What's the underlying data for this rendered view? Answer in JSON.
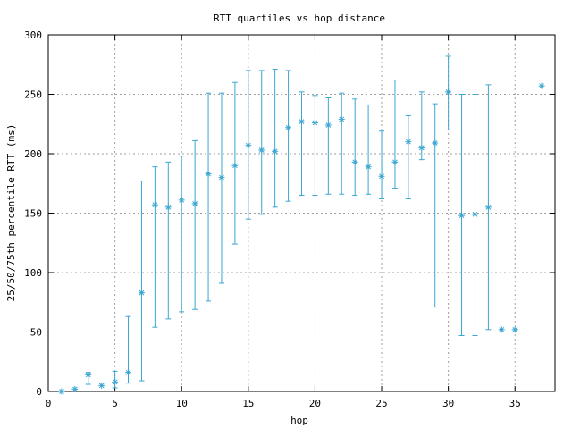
{
  "chart_data": {
    "type": "scatter",
    "title": "RTT quartiles vs hop distance",
    "xlabel": "hop",
    "ylabel": "25/50/75th percentile RTT (ms)",
    "xlim": [
      0,
      38
    ],
    "ylim": [
      0,
      300
    ],
    "x_ticks": [
      0,
      5,
      10,
      15,
      20,
      25,
      30,
      35
    ],
    "y_ticks": [
      0,
      50,
      100,
      150,
      200,
      250,
      300
    ],
    "grid": true,
    "legend": "none",
    "series_color": "#3aa6d2",
    "series": [
      {
        "points": [
          {
            "x": 1,
            "median": 0,
            "q1": null,
            "q3": null
          },
          {
            "x": 2,
            "median": 2,
            "q1": null,
            "q3": null
          },
          {
            "x": 3,
            "median": 14,
            "q1": 6,
            "q3": 16
          },
          {
            "x": 4,
            "median": 5,
            "q1": null,
            "q3": null
          },
          {
            "x": 5,
            "median": 8,
            "q1": 3,
            "q3": 17
          },
          {
            "x": 6,
            "median": 16,
            "q1": 7,
            "q3": 63
          },
          {
            "x": 7,
            "median": 83,
            "q1": 9,
            "q3": 177
          },
          {
            "x": 8,
            "median": 157,
            "q1": 54,
            "q3": 189
          },
          {
            "x": 9,
            "median": 155,
            "q1": 61,
            "q3": 193
          },
          {
            "x": 10,
            "median": 161,
            "q1": 67,
            "q3": 198
          },
          {
            "x": 11,
            "median": 158,
            "q1": 69,
            "q3": 211
          },
          {
            "x": 12,
            "median": 183,
            "q1": 76,
            "q3": 251
          },
          {
            "x": 13,
            "median": 180,
            "q1": 91,
            "q3": 251
          },
          {
            "x": 14,
            "median": 190,
            "q1": 124,
            "q3": 260
          },
          {
            "x": 15,
            "median": 207,
            "q1": 145,
            "q3": 270
          },
          {
            "x": 16,
            "median": 203,
            "q1": 149,
            "q3": 270
          },
          {
            "x": 17,
            "median": 202,
            "q1": 155,
            "q3": 271
          },
          {
            "x": 18,
            "median": 222,
            "q1": 160,
            "q3": 270
          },
          {
            "x": 19,
            "median": 227,
            "q1": 165,
            "q3": 252
          },
          {
            "x": 20,
            "median": 226,
            "q1": 165,
            "q3": 249
          },
          {
            "x": 21,
            "median": 224,
            "q1": 166,
            "q3": 247
          },
          {
            "x": 22,
            "median": 229,
            "q1": 166,
            "q3": 251
          },
          {
            "x": 23,
            "median": 193,
            "q1": 165,
            "q3": 246
          },
          {
            "x": 24,
            "median": 189,
            "q1": 166,
            "q3": 241
          },
          {
            "x": 25,
            "median": 181,
            "q1": 162,
            "q3": 219
          },
          {
            "x": 26,
            "median": 193,
            "q1": 171,
            "q3": 262
          },
          {
            "x": 27,
            "median": 210,
            "q1": 162,
            "q3": 232
          },
          {
            "x": 28,
            "median": 205,
            "q1": 195,
            "q3": 252
          },
          {
            "x": 29,
            "median": 209,
            "q1": 71,
            "q3": 242
          },
          {
            "x": 30,
            "median": 252,
            "q1": 220,
            "q3": 282
          },
          {
            "x": 31,
            "median": 148,
            "q1": 47,
            "q3": 250
          },
          {
            "x": 32,
            "median": 149,
            "q1": 47,
            "q3": 250
          },
          {
            "x": 33,
            "median": 155,
            "q1": 52,
            "q3": 258
          },
          {
            "x": 34,
            "median": 52,
            "q1": null,
            "q3": null
          },
          {
            "x": 35,
            "median": 52,
            "q1": null,
            "q3": null
          },
          {
            "x": 37,
            "median": 257,
            "q1": null,
            "q3": null
          }
        ]
      }
    ]
  }
}
